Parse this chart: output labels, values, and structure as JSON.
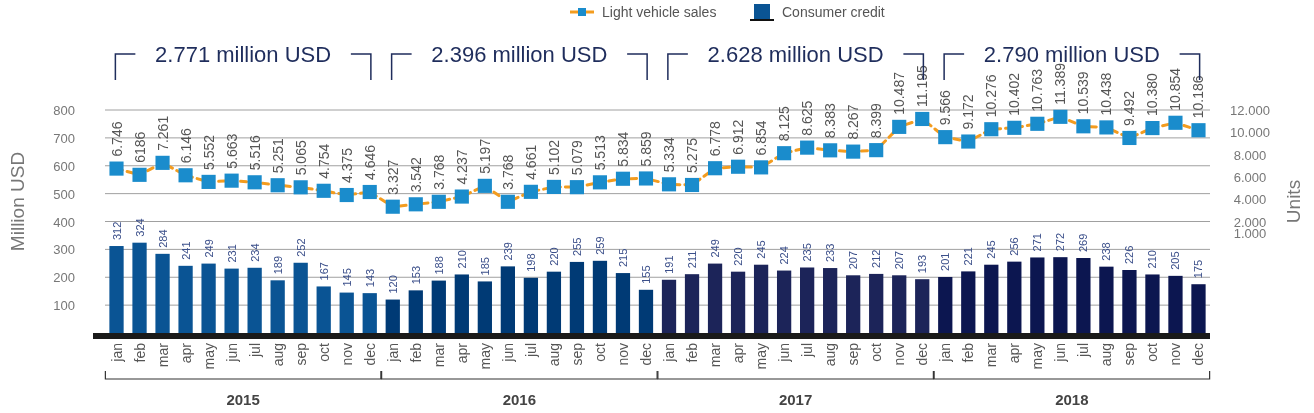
{
  "chart_data": {
    "type": "bar",
    "categories": [
      "jan",
      "feb",
      "mar",
      "apr",
      "may",
      "jun",
      "jul",
      "aug",
      "sep",
      "oct",
      "nov",
      "dec",
      "jan",
      "feb",
      "mar",
      "apr",
      "may",
      "jun",
      "jul",
      "aug",
      "sep",
      "oct",
      "nov",
      "dec",
      "jan",
      "feb",
      "mar",
      "apr",
      "may",
      "jun",
      "jul",
      "aug",
      "sep",
      "oct",
      "nov",
      "dec",
      "jan",
      "feb",
      "mar",
      "apr",
      "may",
      "jun",
      "jul",
      "aug",
      "sep",
      "oct",
      "nov",
      "dec"
    ],
    "series": [
      {
        "name": "Light vehicle sales",
        "type": "line",
        "axis": "y2",
        "color": "#1a8ccc",
        "marker": "square",
        "line_style": "dashed",
        "values": [
          6746,
          6186,
          7261,
          6146,
          5552,
          5663,
          5516,
          5251,
          5065,
          4754,
          4375,
          4646,
          3327,
          3542,
          3768,
          4237,
          5197,
          3768,
          4661,
          5102,
          5079,
          5513,
          5834,
          5859,
          5334,
          5275,
          6778,
          6912,
          6854,
          8125,
          8625,
          8383,
          8267,
          8399,
          10487,
          11195,
          9566,
          9172,
          10276,
          10402,
          10763,
          11389,
          10539,
          10438,
          9492,
          10380,
          10854,
          10186
        ],
        "value_labels": [
          "6.746",
          "6186",
          "7.261",
          "6.146",
          "5.552",
          "5.663",
          "5.516",
          "5.251",
          "5.065",
          "4.754",
          "4.375",
          "4.646",
          "3.327",
          "3.542",
          "3.768",
          "4.237",
          "5.197",
          "3.768",
          "4.661",
          "5.102",
          "5.079",
          "5.513",
          "5.834",
          "5.859",
          "5.334",
          "5.275",
          "6.778",
          "6.912",
          "6.854",
          "8.125",
          "8.625",
          "8.383",
          "8.267",
          "8.399",
          "10.487",
          "11.195",
          "9.566",
          "9.172",
          "10.276",
          "10.402",
          "10.763",
          "11.389",
          "10.539",
          "10.438",
          "9.492",
          "10.380",
          "10.854",
          "10.186"
        ]
      },
      {
        "name": "Consumer credit",
        "color": "#0a5494",
        "colors": [
          "#0a5494",
          "#0a5494",
          "#0a5494",
          "#0a5494",
          "#0a5494",
          "#0a5494",
          "#0a5494",
          "#0a5494",
          "#0a5494",
          "#0a5494",
          "#0a5494",
          "#0a5494",
          "#003a75",
          "#003a75",
          "#003a75",
          "#003a75",
          "#003a75",
          "#003a75",
          "#003a75",
          "#003a75",
          "#003a75",
          "#003a75",
          "#003a75",
          "#003a75",
          "#1c2459",
          "#1c2459",
          "#1c2459",
          "#1c2459",
          "#1c2459",
          "#1c2459",
          "#1c2459",
          "#1c2459",
          "#1c2459",
          "#1c2459",
          "#1c2459",
          "#1c2459",
          "#0c1650",
          "#0c1650",
          "#0c1650",
          "#0c1650",
          "#0c1650",
          "#0c1650",
          "#0c1650",
          "#0c1650",
          "#0c1650",
          "#0c1650",
          "#0c1650",
          "#0c1650"
        ],
        "values": [
          312,
          324,
          284,
          241,
          249,
          231,
          234,
          189,
          252,
          167,
          145,
          143,
          120,
          153,
          188,
          210,
          185,
          239,
          198,
          220,
          255,
          259,
          215,
          155,
          191,
          211,
          249,
          220,
          245,
          224,
          235,
          233,
          207,
          212,
          207,
          193,
          201,
          221,
          245,
          256,
          271,
          272,
          269,
          238,
          226,
          210,
          205,
          175
        ],
        "value_labels": [
          "312",
          "324",
          "284",
          "241",
          "249",
          "231",
          "234",
          "189",
          "252",
          "167",
          "145",
          "143",
          "120",
          "153",
          "188",
          "210",
          "185",
          "239",
          "198",
          "220",
          "255",
          "259",
          "215",
          "155",
          "191",
          "211",
          "249",
          "220",
          "245",
          "224",
          "235",
          "233",
          "207",
          "212",
          "207",
          "193",
          "201",
          "221",
          "245",
          "256",
          "271",
          "272",
          "269",
          "238",
          "226",
          "210",
          "205",
          "175"
        ]
      }
    ],
    "ylabel": "Million USD",
    "y2label": "Units",
    "ylim": [
      0,
      800
    ],
    "yticks": [
      100,
      200,
      300,
      400,
      500,
      600,
      700,
      800
    ],
    "y2lim": [
      -8000,
      12000
    ],
    "y2ticks": [
      {
        "value": 1000,
        "label": "1.000"
      },
      {
        "value": 2000,
        "label": "2.000"
      },
      {
        "value": 4000,
        "label": "4.000"
      },
      {
        "value": 6000,
        "label": "6.000"
      },
      {
        "value": 8000,
        "label": "8.000"
      },
      {
        "value": 10000,
        "label": "10.000"
      },
      {
        "value": 12000,
        "label": "12.000"
      }
    ],
    "grid": "y",
    "legend": "top",
    "annotations": [
      "2.771 million USD",
      "2.396 million USD",
      "2.628  million USD",
      "2.790  million USD",
      "2015",
      "2016",
      "2017",
      "2018"
    ]
  }
}
